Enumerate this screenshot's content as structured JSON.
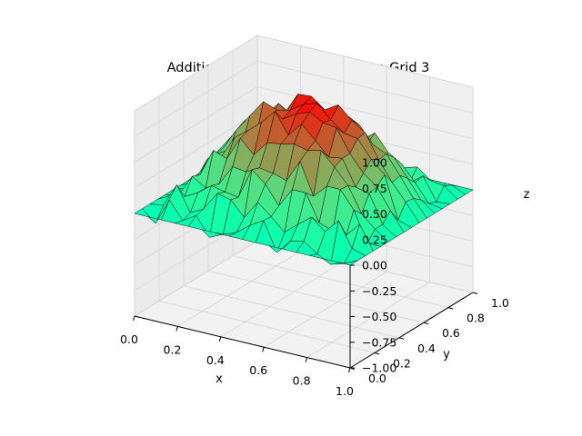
{
  "chart_data": {
    "type": "surface3d",
    "title": "Addition of Error to Correction on Grid 3",
    "xlabel": "x",
    "ylabel": "y",
    "zlabel": "z",
    "xlim": [
      0,
      1
    ],
    "ylim": [
      0,
      1
    ],
    "zlim": [
      -1,
      1
    ],
    "xticks": [
      "0.0",
      "0.2",
      "0.4",
      "0.6",
      "0.8",
      "1.0"
    ],
    "yticks": [
      "0.0",
      "0.2",
      "0.4",
      "0.6",
      "0.8",
      "1.0"
    ],
    "zticks": [
      "−1.00",
      "−0.75",
      "−0.50",
      "−0.25",
      "0.00",
      "0.25",
      "0.50",
      "0.75",
      "1.00"
    ],
    "colormap": "rainbow",
    "grid": true,
    "x": [
      0,
      0.0625,
      0.125,
      0.1875,
      0.25,
      0.3125,
      0.375,
      0.4375,
      0.5,
      0.5625,
      0.625,
      0.6875,
      0.75,
      0.8125,
      0.875,
      0.9375,
      1
    ],
    "y": [
      0,
      0.0625,
      0.125,
      0.1875,
      0.25,
      0.3125,
      0.375,
      0.4375,
      0.5,
      0.5625,
      0.625,
      0.6875,
      0.75,
      0.8125,
      0.875,
      0.9375,
      1
    ],
    "z": [
      [
        0.0,
        0.0,
        0.0,
        0.0,
        0.0,
        0.0,
        0.0,
        0.0,
        0.0,
        0.0,
        0.0,
        0.0,
        0.0,
        0.0,
        0.0,
        0.0,
        0.0
      ],
      [
        0.0,
        -0.11,
        0.15,
        -0.02,
        0.06,
        -0.12,
        -0.06,
        -0.01,
        0.09,
        0.17,
        -0.11,
        0.03,
        0.06,
        -0.03,
        -0.1,
        -0.06,
        0.0
      ],
      [
        0.0,
        0.02,
        0.25,
        0.01,
        0.08,
        0.26,
        0.23,
        0.09,
        0.27,
        0.16,
        0.04,
        0.15,
        0.25,
        0.14,
        0.28,
        0.04,
        0.0
      ],
      [
        0.0,
        0.07,
        0.09,
        0.16,
        0.26,
        0.23,
        0.21,
        0.51,
        0.4,
        0.22,
        0.41,
        0.41,
        0.15,
        0.1,
        0.09,
        0.23,
        0.0
      ],
      [
        0.0,
        0.03,
        0.24,
        0.16,
        0.23,
        0.43,
        0.41,
        0.48,
        0.46,
        0.42,
        0.64,
        0.33,
        0.46,
        0.46,
        0.29,
        0.0,
        0.0
      ],
      [
        0.0,
        0.05,
        0.21,
        0.48,
        0.43,
        0.66,
        0.53,
        0.68,
        0.7,
        0.73,
        0.7,
        0.73,
        0.6,
        0.45,
        0.21,
        0.09,
        0.0
      ],
      [
        0.0,
        0.06,
        0.32,
        0.37,
        0.59,
        0.69,
        0.8,
        0.94,
        0.74,
        0.88,
        0.75,
        0.62,
        0.64,
        0.39,
        0.36,
        0.09,
        0.0
      ],
      [
        0.0,
        0.12,
        0.32,
        0.39,
        0.48,
        0.55,
        0.76,
        0.82,
        0.9,
        0.95,
        0.88,
        0.86,
        0.64,
        0.48,
        0.38,
        0.18,
        0.0
      ],
      [
        0.0,
        0.01,
        0.33,
        0.54,
        0.71,
        0.88,
        0.83,
        0.86,
        0.95,
        0.99,
        0.86,
        0.76,
        0.74,
        0.57,
        0.45,
        0.04,
        0.0
      ],
      [
        0.0,
        0.22,
        0.39,
        0.58,
        0.61,
        0.67,
        0.75,
        0.97,
        0.98,
        0.88,
        0.96,
        0.84,
        0.75,
        0.52,
        0.33,
        0.17,
        0.0
      ],
      [
        0.0,
        -0.01,
        0.38,
        0.59,
        0.63,
        0.77,
        0.66,
        0.88,
        0.81,
        0.81,
        0.82,
        0.75,
        0.59,
        0.53,
        0.35,
        0.16,
        0.0
      ],
      [
        0.0,
        0.21,
        0.36,
        0.53,
        0.49,
        0.66,
        0.67,
        0.73,
        0.72,
        0.8,
        0.62,
        0.52,
        0.41,
        0.45,
        0.28,
        0.1,
        0.0
      ],
      [
        0.0,
        0.0,
        0.39,
        0.49,
        0.47,
        0.52,
        0.47,
        0.66,
        0.48,
        0.48,
        0.48,
        0.58,
        0.42,
        0.34,
        0.19,
        0.02,
        0.0
      ],
      [
        0.0,
        0.06,
        0.06,
        0.12,
        0.44,
        0.42,
        0.46,
        0.47,
        0.33,
        0.43,
        0.35,
        0.24,
        0.11,
        0.11,
        0.21,
        -0.01,
        0.0
      ],
      [
        0.0,
        0.14,
        0.05,
        0.15,
        0.21,
        0.25,
        0.21,
        0.14,
        0.25,
        0.22,
        0.11,
        0.23,
        0.18,
        0.22,
        0.12,
        0.1,
        0.0
      ],
      [
        0.0,
        -0.15,
        0.16,
        -0.08,
        0.22,
        -0.02,
        -0.11,
        0.08,
        0.19,
        0.12,
        0.04,
        0.12,
        0.03,
        -0.07,
        -0.02,
        0.06,
        0.0
      ],
      [
        0.0,
        0.0,
        0.0,
        0.0,
        0.0,
        0.0,
        0.0,
        0.0,
        0.0,
        0.0,
        0.0,
        0.0,
        0.0,
        0.0,
        0.0,
        0.0,
        0.0
      ]
    ]
  }
}
